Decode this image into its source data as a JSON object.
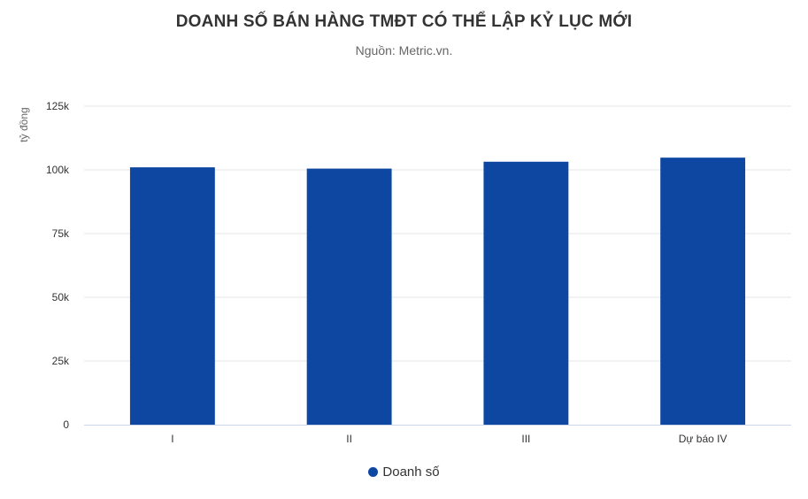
{
  "colors": {
    "bar": "#0d47a1",
    "grid": "#e6e6e6",
    "axis": "#ccd6eb",
    "label": "#333333"
  },
  "chart_data": {
    "type": "bar",
    "title": "DOANH SỐ BÁN HÀNG TMĐT CÓ THỂ LẬP KỶ LỤC MỚI",
    "subtitle": "Nguồn: Metric.vn.",
    "xlabel": "",
    "ylabel": "tỷ đồng",
    "categories": [
      "I",
      "II",
      "III",
      "Dự báo IV"
    ],
    "series": [
      {
        "name": "Doanh số",
        "values": [
          101000,
          100500,
          103200,
          104800
        ]
      }
    ],
    "ylim": [
      0,
      125000
    ],
    "yticks": [
      0,
      25000,
      50000,
      75000,
      100000,
      125000
    ],
    "ytick_labels": [
      "0",
      "25k",
      "50k",
      "75k",
      "100k",
      "125k"
    ],
    "grid": true,
    "legend_position": "bottom-center"
  }
}
